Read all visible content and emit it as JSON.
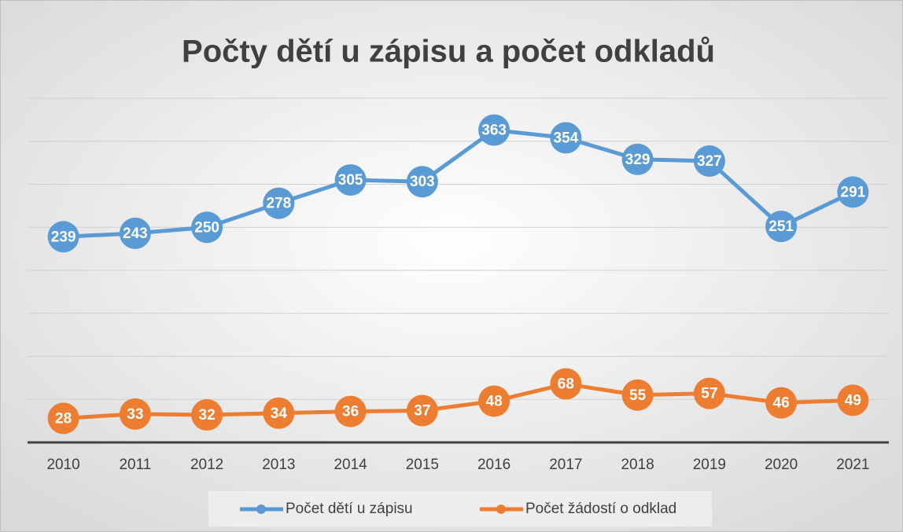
{
  "chart_data": {
    "type": "line",
    "title": "Počty dětí u zápisu a počet odkladů",
    "categories": [
      "2010",
      "2011",
      "2012",
      "2013",
      "2014",
      "2015",
      "2016",
      "2017",
      "2018",
      "2019",
      "2020",
      "2021"
    ],
    "series": [
      {
        "name": "Počet dětí u zápisu",
        "color": "#5b9bd5",
        "values": [
          239,
          243,
          250,
          278,
          305,
          303,
          363,
          354,
          329,
          327,
          251,
          291
        ]
      },
      {
        "name": "Počet žádostí o odklad",
        "color": "#ed7d31",
        "values": [
          28,
          33,
          32,
          34,
          36,
          37,
          48,
          68,
          55,
          57,
          46,
          49
        ]
      }
    ],
    "ylim": [
      0,
      400
    ],
    "yticks": [
      0,
      50,
      100,
      150,
      200,
      250,
      300,
      350,
      400
    ],
    "grid": true,
    "legend": "bottom"
  }
}
